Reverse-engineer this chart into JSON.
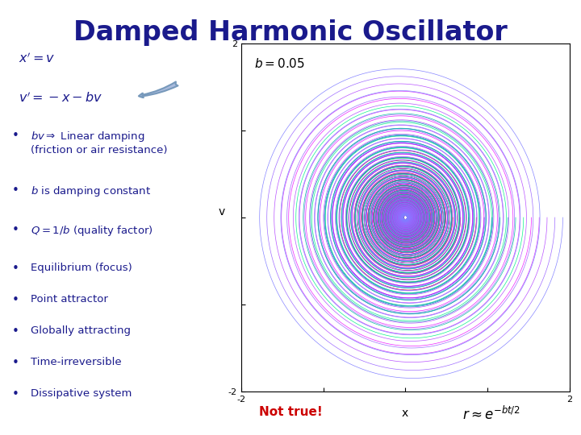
{
  "title": "Damped Harmonic Oscillator",
  "title_color": "#1a1a8c",
  "title_fontsize": 24,
  "b": 0.05,
  "b_label": "b = 0.05",
  "plot_xlim": [
    -2,
    2
  ],
  "plot_ylim": [
    -2,
    2
  ],
  "plot_xlabel": "x",
  "plot_ylabel": "v",
  "background_color": "#ffffff",
  "text_color": "#1a1a8c",
  "not_true_color": "#cc0000",
  "num_trajectories": 20,
  "t_max": 300,
  "dt": 0.03
}
